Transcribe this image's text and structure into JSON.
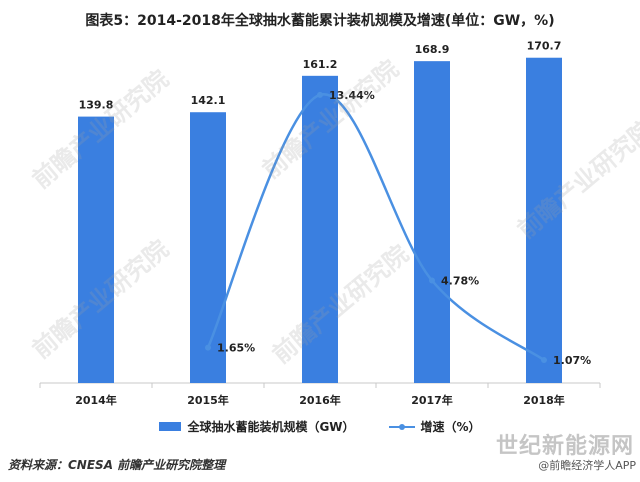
{
  "title": "图表5：2014-2018年全球抽水蓄能累计装机规模及增速(单位：GW，%)",
  "source": "资料来源：CNESA 前瞻产业研究院整理",
  "watermarks": {
    "diagonal_text": "前瞻产业研究院",
    "site": "世纪新能源网",
    "app": "@前瞻经济学人APP"
  },
  "colors": {
    "bar": "#3a7fe0",
    "line": "#4a90e2",
    "axis": "#c8c8c8"
  },
  "legend": {
    "bar_label": "全球抽水蓄能装机规模（GW）",
    "line_label": "增速（%）"
  },
  "chart_data": {
    "type": "bar",
    "categories": [
      "2014年",
      "2015年",
      "2016年",
      "2017年",
      "2018年"
    ],
    "series": [
      {
        "name": "全球抽水蓄能装机规模（GW）",
        "type": "bar",
        "values": [
          139.8,
          142.1,
          161.2,
          168.9,
          170.7
        ],
        "labels": [
          "139.8",
          "142.1",
          "161.2",
          "168.9",
          "170.7"
        ]
      },
      {
        "name": "增速（%）",
        "type": "line",
        "smooth": true,
        "values": [
          null,
          1.65,
          13.44,
          4.78,
          1.07
        ],
        "labels": [
          "",
          "1.65%",
          "13.44%",
          "4.78%",
          "1.07%"
        ]
      }
    ],
    "ylim_bar": [
      0,
      180
    ],
    "ylim_line": [
      0,
      16
    ],
    "grid": false,
    "legend_position": "bottom"
  }
}
